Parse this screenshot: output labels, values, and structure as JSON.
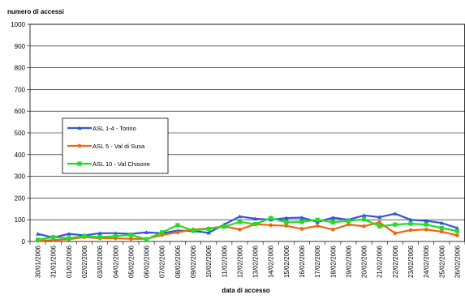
{
  "chart_data": {
    "type": "line",
    "ylabel": "numero di accessi",
    "xlabel": "data di accesso",
    "ylim": [
      0,
      1000
    ],
    "yticks": [
      0,
      100,
      200,
      300,
      400,
      500,
      600,
      700,
      800,
      900,
      1000
    ],
    "grid": true,
    "legend_position": "left-middle",
    "categories": [
      "30/01/2006",
      "31/01/2006",
      "01/02/2006",
      "02/02/2006",
      "03/02/2006",
      "04/02/2006",
      "05/02/2006",
      "06/02/2006",
      "07/02/2006",
      "08/02/2006",
      "09/02/2006",
      "10/02/2006",
      "11/02/2006",
      "12/02/2006",
      "13/02/2006",
      "14/02/2006",
      "15/02/2006",
      "16/02/2006",
      "17/02/2006",
      "18/02/2006",
      "19/02/2006",
      "20/02/2006",
      "21/02/2006",
      "22/02/2006",
      "23/02/2006",
      "24/02/2006",
      "25/02/2006",
      "26/02/2006"
    ],
    "series": [
      {
        "name": "ASL 1-4 - Torino",
        "color": "#3355dd",
        "marker": "triangle",
        "values": [
          35,
          18,
          35,
          28,
          38,
          38,
          35,
          42,
          38,
          50,
          48,
          40,
          78,
          115,
          105,
          100,
          108,
          110,
          90,
          110,
          100,
          120,
          112,
          128,
          100,
          95,
          85,
          62
        ]
      },
      {
        "name": "ASL 5 - Val di Susa",
        "color": "#ee6611",
        "marker": "circle",
        "values": [
          3,
          6,
          10,
          20,
          15,
          15,
          12,
          12,
          30,
          42,
          55,
          60,
          70,
          55,
          80,
          75,
          72,
          58,
          72,
          55,
          78,
          70,
          88,
          38,
          52,
          55,
          45,
          28
        ]
      },
      {
        "name": "ASL 10 - Val Chisone",
        "color": "#22dd22",
        "marker": "square",
        "values": [
          8,
          20,
          15,
          25,
          20,
          25,
          30,
          10,
          42,
          75,
          50,
          58,
          68,
          90,
          80,
          108,
          88,
          90,
          100,
          88,
          95,
          102,
          70,
          78,
          82,
          78,
          62,
          48
        ]
      }
    ]
  }
}
